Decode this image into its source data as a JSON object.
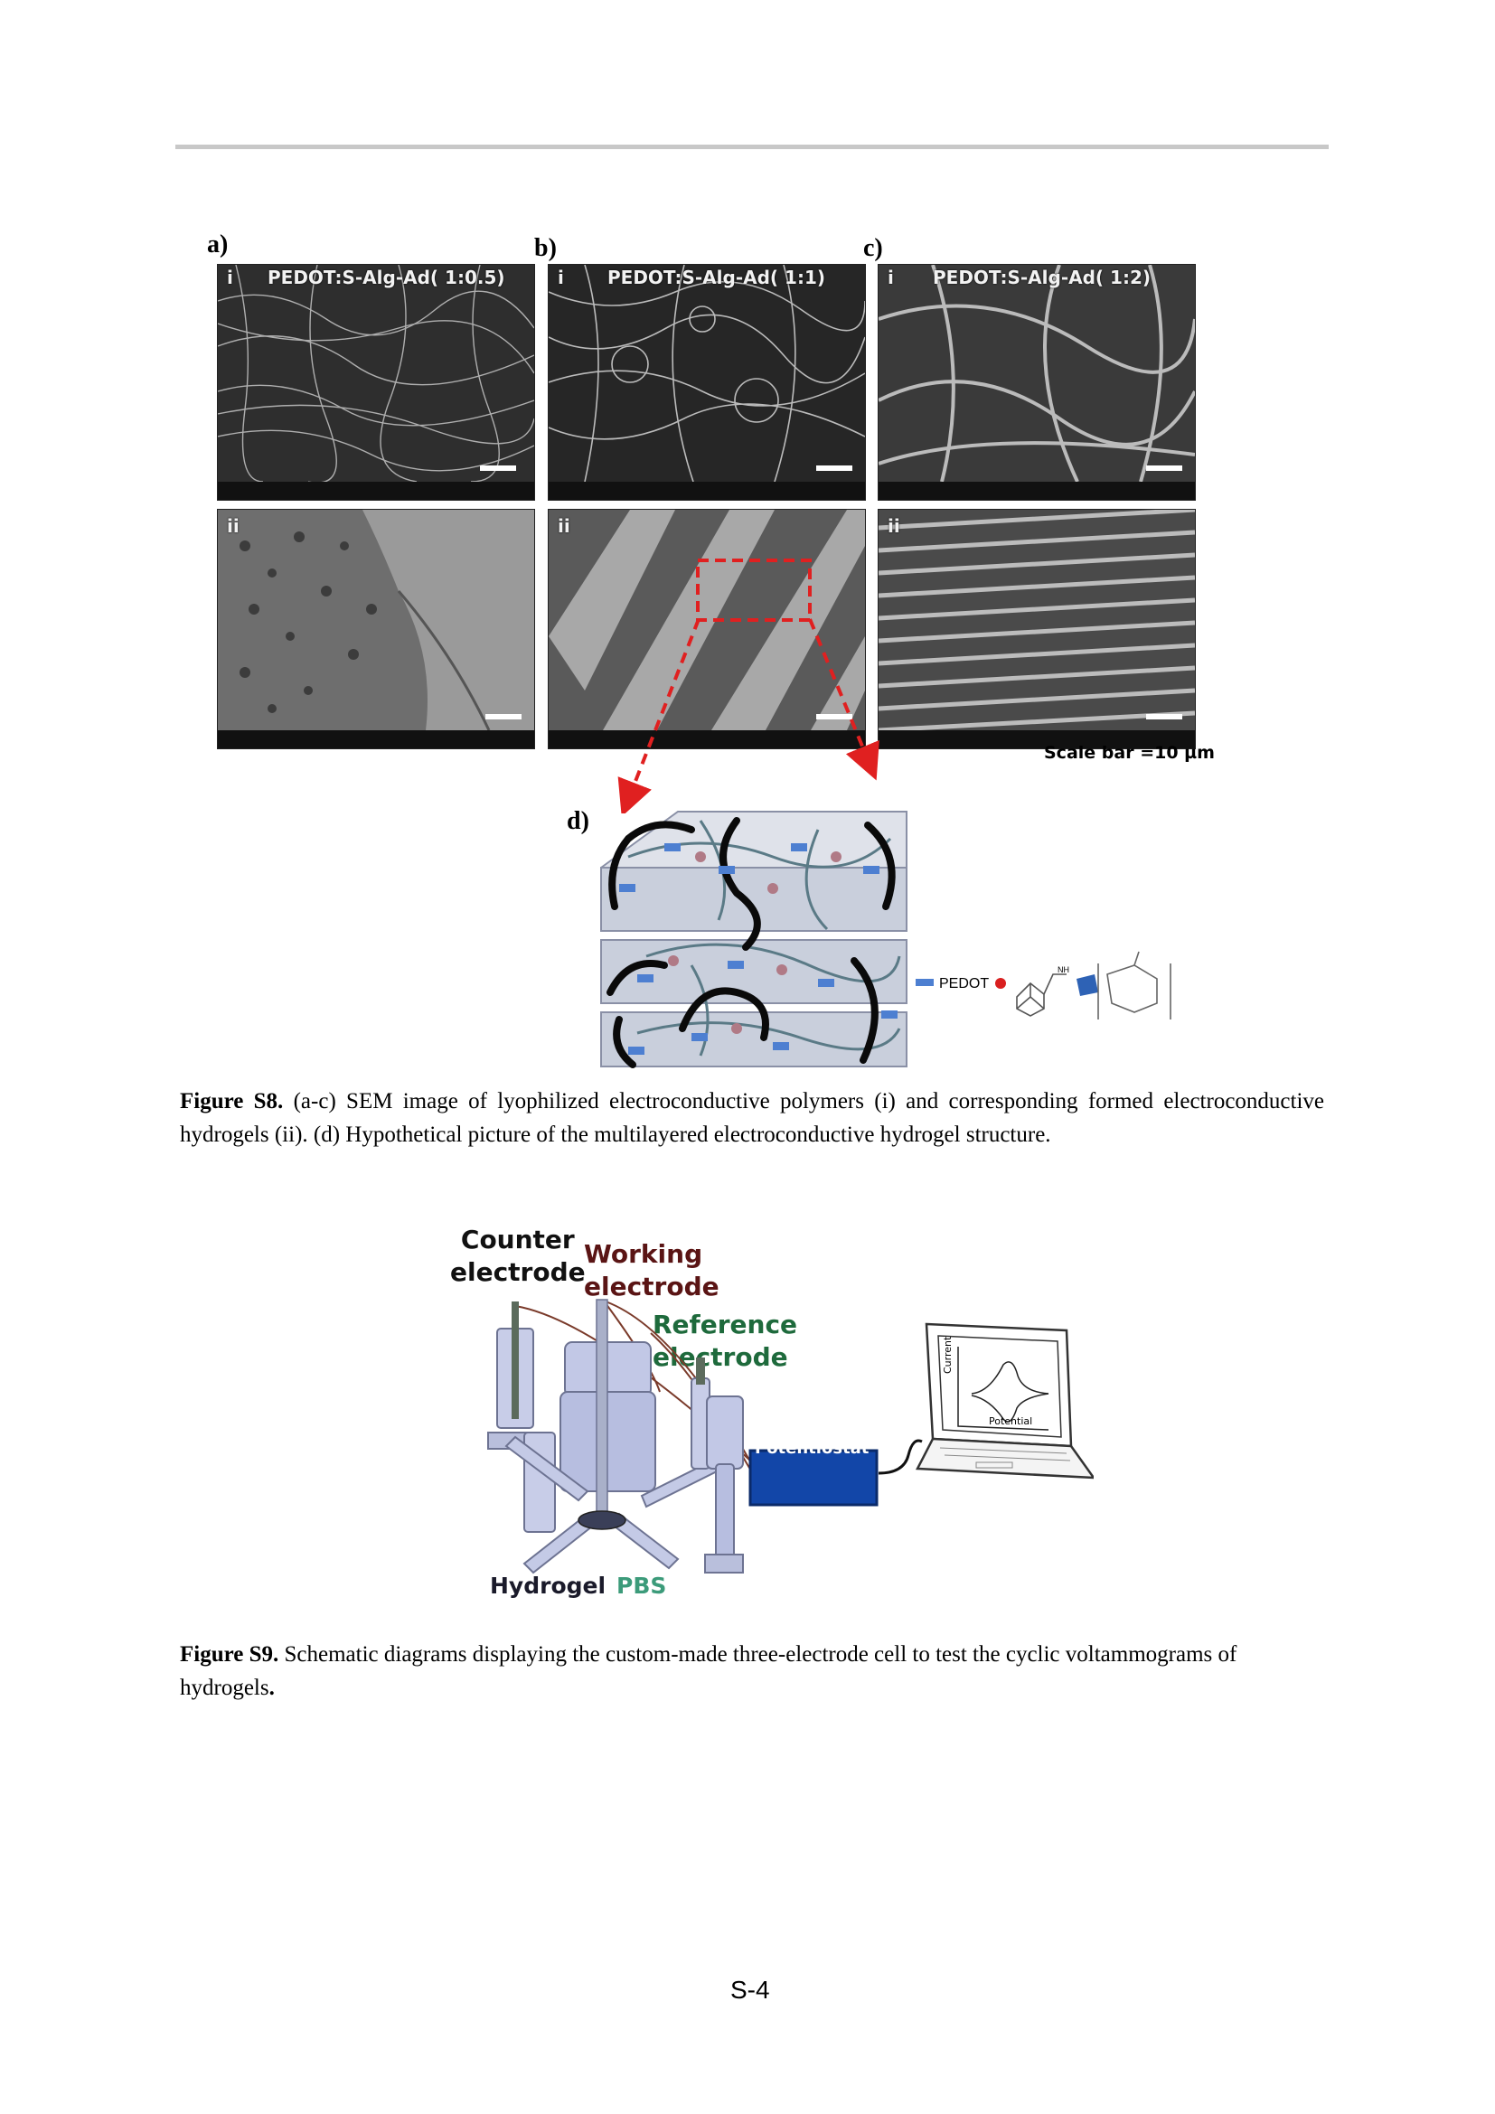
{
  "fig_s8": {
    "panels": [
      {
        "letter": "a)",
        "top_roman": "i",
        "title": "PEDOT:S-Alg-Ad( 1:0.5)",
        "bottom_roman": "ii"
      },
      {
        "letter": "b)",
        "top_roman": "i",
        "title": "PEDOT:S-Alg-Ad( 1:1)",
        "bottom_roman": "ii"
      },
      {
        "letter": "c)",
        "top_roman": "i",
        "title": "PEDOT:S-Alg-Ad( 1:2)",
        "bottom_roman": "ii"
      }
    ],
    "scale_bar": "Scale bar =10 µm",
    "d_label": "d)",
    "legend_pedot": "PEDOT",
    "legend_nh": "NH",
    "caption_lead": "Figure S8.",
    "caption_text": " (a-c) SEM image of lyophilized electroconductive polymers (i) and corresponding formed electroconductive hydrogels (ii). (d) Hypothetical picture of the multilayered electroconductive hydrogel structure."
  },
  "fig_s9": {
    "counter_electrode": [
      "Counter",
      "electrode"
    ],
    "working_electrode": [
      "Working",
      "electrode"
    ],
    "reference_electrode": [
      "Reference",
      "electrode"
    ],
    "potentiostat": "Potentiostat",
    "hydrogel": "Hydrogel",
    "pbs": "PBS",
    "current_axis": "Current",
    "potential_axis": "Potential",
    "caption_lead": "Figure S9.",
    "caption_text": " Schematic diagrams displaying the custom-made three-electrode cell to test the cyclic voltammograms of hydrogels",
    "caption_end": "."
  },
  "page_number": "S-4",
  "colors": {
    "counter": "#111111",
    "working": "#5a1414",
    "reference": "#1e6a3c",
    "potentiostat_fill": "#1246a8",
    "pbs": "#3c9b7a",
    "dashed_red": "#e02020"
  }
}
